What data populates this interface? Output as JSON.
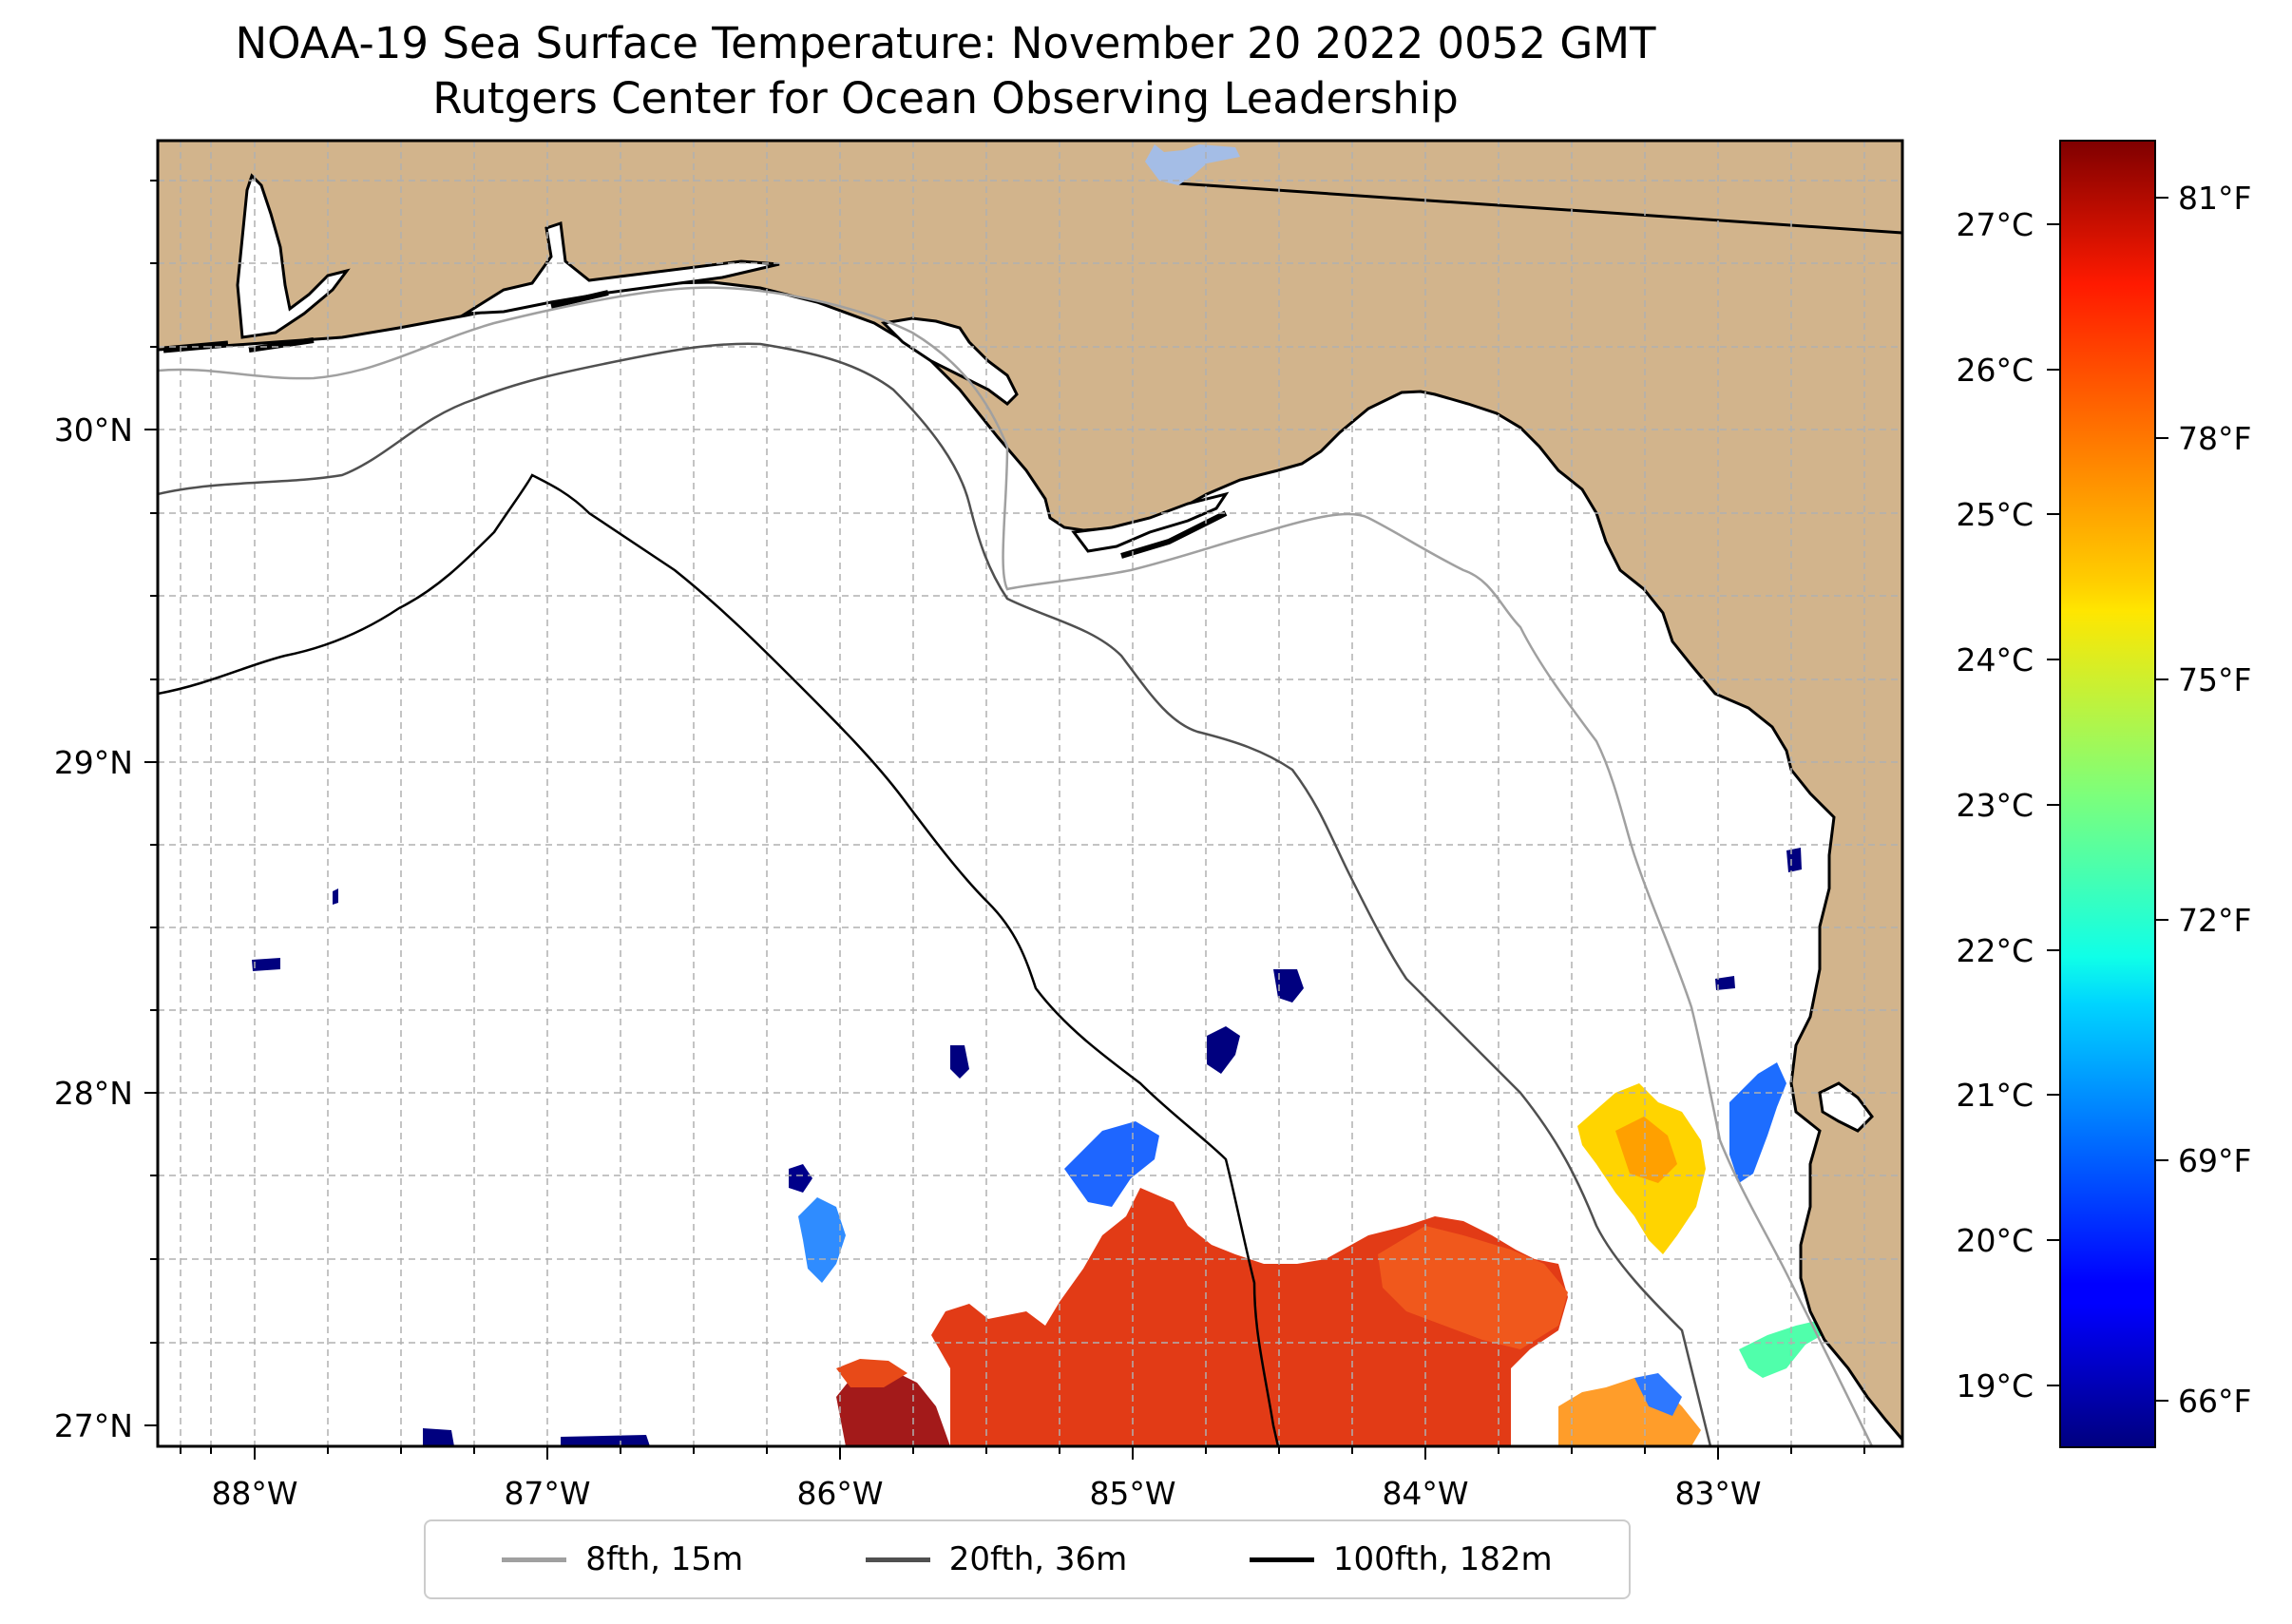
{
  "title": {
    "line1": "NOAA-19 Sea Surface Temperature: November 20 2022 0052 GMT",
    "line2": "Rutgers Center for Ocean Observing Leadership"
  },
  "map": {
    "region": "Northeastern Gulf of Mexico / Florida Big Bend",
    "lon_range": [
      -88.33,
      -82.38
    ],
    "lat_range": [
      26.93,
      30.85
    ],
    "lon_ticks": [
      "88°W",
      "87°W",
      "86°W",
      "85°W",
      "84°W",
      "83°W"
    ],
    "lat_ticks": [
      "27°N",
      "28°N",
      "29°N",
      "30°N"
    ],
    "land_color": "#d2b48c",
    "ocean_color": "#ffffff",
    "lake_color": "#a4bde6"
  },
  "colorbar": {
    "colormap": "jet",
    "celsius_range": [
      18.6,
      27.6
    ],
    "celsius_labels": [
      "19°C",
      "20°C",
      "21°C",
      "22°C",
      "23°C",
      "24°C",
      "25°C",
      "26°C",
      "27°C"
    ],
    "fahrenheit_labels": [
      "66°F",
      "69°F",
      "72°F",
      "75°F",
      "78°F",
      "81°F"
    ]
  },
  "legend": [
    {
      "label": "8fth, 15m",
      "color": "#a0a0a0"
    },
    {
      "label": "20fth, 36m",
      "color": "#505050"
    },
    {
      "label": "100fth, 182m",
      "color": "#000000"
    }
  ]
}
